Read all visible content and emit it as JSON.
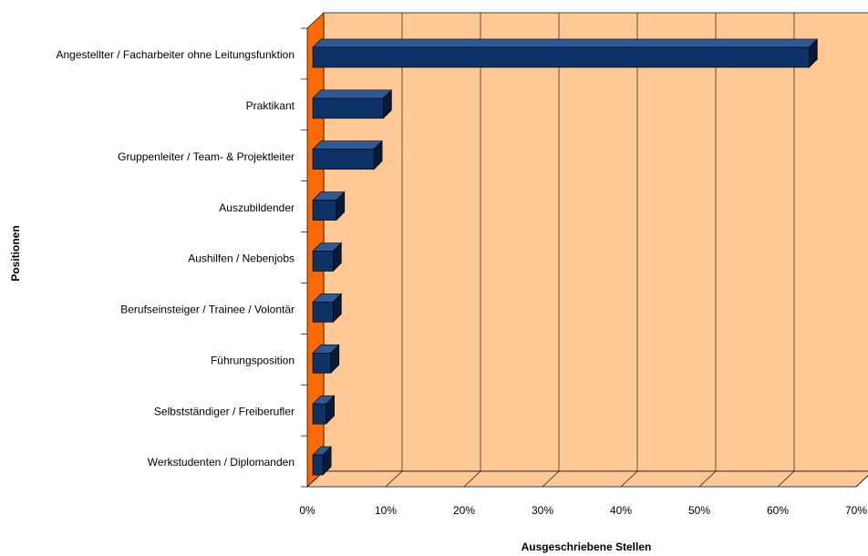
{
  "chart_data": {
    "type": "bar",
    "orientation": "horizontal",
    "style": "3d",
    "title": "",
    "xlabel": "Ausgeschriebene Stellen",
    "ylabel": "Positionen",
    "xlim": [
      0,
      70
    ],
    "x_ticks": [
      "0%",
      "10%",
      "20%",
      "30%",
      "40%",
      "50%",
      "60%",
      "70%"
    ],
    "grid": true,
    "legend": "none",
    "categories": [
      "Angestellter / Facharbeiter ohne Leitungsfunktion",
      "Praktikant",
      "Gruppenleiter / Team- & Projektleiter",
      "Auszubildender",
      "Aushilfen / Nebenjobs",
      "Berufseinsteiger / Trainee / Volontär",
      "Führungsposition",
      "Selbstständiger / Freiberufler",
      "Werkstudenten / Diplomanden"
    ],
    "values": [
      64.0,
      9.7,
      8.5,
      3.7,
      3.3,
      3.3,
      3.0,
      2.4,
      2.0
    ],
    "colors": {
      "bar_front": "#0d3266",
      "bar_top": "#2d5a96",
      "bar_side": "#061a3a",
      "plot_back": "#ffc894",
      "plot_floor": "#ffc896",
      "left_wall": "#ff6a00",
      "gridline": "#000000"
    }
  }
}
